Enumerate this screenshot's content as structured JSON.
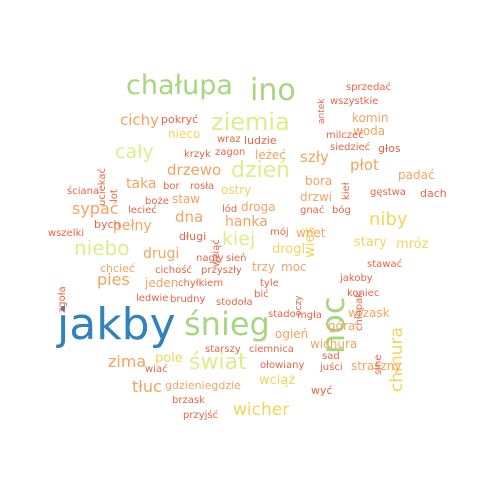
{
  "palette": {
    "dark_blue": "#3182bd",
    "green": "#a6d77f",
    "light_green": "#d9ef8b",
    "yellow": "#f6d35a",
    "orange": "#f4a35f",
    "red_orange": "#e86445"
  },
  "words": [
    {
      "text": "jakby",
      "color": "dark_blue",
      "weight": 1.0
    },
    {
      "text": "śnieg",
      "color": "green",
      "weight": 0.72
    },
    {
      "text": "noc",
      "color": "green",
      "weight": 0.72
    },
    {
      "text": "chałupa",
      "color": "green",
      "weight": 0.6
    },
    {
      "text": "ino",
      "color": "green",
      "weight": 0.6
    },
    {
      "text": "ziemia",
      "color": "light_green",
      "weight": 0.55
    },
    {
      "text": "świat",
      "color": "light_green",
      "weight": 0.5
    },
    {
      "text": "dzień",
      "color": "light_green",
      "weight": 0.48
    },
    {
      "text": "niebo",
      "color": "light_green",
      "weight": 0.45
    },
    {
      "text": "cały",
      "color": "light_green",
      "weight": 0.42
    },
    {
      "text": "kiej",
      "color": "light_green",
      "weight": 0.38
    },
    {
      "text": "niby",
      "color": "yellow",
      "weight": 0.38
    },
    {
      "text": "chmura",
      "color": "yellow",
      "weight": 0.35
    },
    {
      "text": "wicher",
      "color": "yellow",
      "weight": 0.35
    },
    {
      "text": "zima",
      "color": "orange",
      "weight": 0.33
    },
    {
      "text": "pies",
      "color": "orange",
      "weight": 0.33
    },
    {
      "text": "sypać",
      "color": "orange",
      "weight": 0.32
    },
    {
      "text": "tłuc",
      "color": "orange",
      "weight": 0.3
    },
    {
      "text": "cichy",
      "color": "orange",
      "weight": 0.28
    },
    {
      "text": "szły",
      "color": "orange",
      "weight": 0.3
    },
    {
      "text": "płot",
      "color": "orange",
      "weight": 0.3
    },
    {
      "text": "drzewo",
      "color": "orange",
      "weight": 0.28
    },
    {
      "text": "dna",
      "color": "orange",
      "weight": 0.3
    },
    {
      "text": "taka",
      "color": "orange",
      "weight": 0.28
    },
    {
      "text": "pełny",
      "color": "orange",
      "weight": 0.26
    },
    {
      "text": "drugi",
      "color": "orange",
      "weight": 0.26
    },
    {
      "text": "hanka",
      "color": "orange",
      "weight": 0.26
    },
    {
      "text": "wieś",
      "color": "yellow",
      "weight": 0.25
    },
    {
      "text": "wciąż",
      "color": "yellow",
      "weight": 0.25
    },
    {
      "text": "mróz",
      "color": "yellow",
      "weight": 0.24
    },
    {
      "text": "stary",
      "color": "yellow",
      "weight": 0.24
    },
    {
      "text": "drogi",
      "color": "yellow",
      "weight": 0.24
    },
    {
      "text": "pole",
      "color": "yellow",
      "weight": 0.24
    },
    {
      "text": "woda",
      "color": "orange",
      "weight": 0.22
    },
    {
      "text": "komin",
      "color": "orange",
      "weight": 0.22
    },
    {
      "text": "padać",
      "color": "orange",
      "weight": 0.22
    },
    {
      "text": "nieco",
      "color": "yellow",
      "weight": 0.22
    },
    {
      "text": "leżeć",
      "color": "orange",
      "weight": 0.22
    },
    {
      "text": "bora",
      "color": "orange",
      "weight": 0.2
    },
    {
      "text": "drzwi",
      "color": "orange",
      "weight": 0.2
    },
    {
      "text": "ostry",
      "color": "yellow",
      "weight": 0.2
    },
    {
      "text": "droga",
      "color": "orange",
      "weight": 0.2
    },
    {
      "text": "staw",
      "color": "orange",
      "weight": 0.2
    },
    {
      "text": "wnet",
      "color": "orange",
      "weight": 0.2
    },
    {
      "text": "trzy",
      "color": "orange",
      "weight": 0.2
    },
    {
      "text": "moc",
      "color": "orange",
      "weight": 0.2
    },
    {
      "text": "jeden",
      "color": "orange",
      "weight": 0.2
    },
    {
      "text": "góra",
      "color": "orange",
      "weight": 0.2
    },
    {
      "text": "wrzask",
      "color": "orange",
      "weight": 0.2
    },
    {
      "text": "ogień",
      "color": "orange",
      "weight": 0.2
    },
    {
      "text": "wichura",
      "color": "orange",
      "weight": 0.2
    },
    {
      "text": "straszny",
      "color": "orange",
      "weight": 0.2
    },
    {
      "text": "chcieć",
      "color": "orange",
      "weight": 0.18
    },
    {
      "text": "gdzieniegdzie",
      "color": "orange",
      "weight": 0.18
    },
    {
      "text": "sprzedać",
      "color": "red_orange",
      "weight": 0.12
    },
    {
      "text": "wszystkie",
      "color": "red_orange",
      "weight": 0.12
    },
    {
      "text": "antek",
      "color": "red_orange",
      "weight": 0.12
    },
    {
      "text": "pokryć",
      "color": "red_orange",
      "weight": 0.14
    },
    {
      "text": "milczeć",
      "color": "red_orange",
      "weight": 0.12
    },
    {
      "text": "wraz",
      "color": "red_orange",
      "weight": 0.14
    },
    {
      "text": "ludzie",
      "color": "red_orange",
      "weight": 0.14
    },
    {
      "text": "uciekać",
      "color": "red_orange",
      "weight": 0.12
    },
    {
      "text": "kieł",
      "color": "red_orange",
      "weight": 0.12
    },
    {
      "text": "siedzieć",
      "color": "red_orange",
      "weight": 0.12
    },
    {
      "text": "głos",
      "color": "red_orange",
      "weight": 0.14
    },
    {
      "text": "krzyk",
      "color": "red_orange",
      "weight": 0.12
    },
    {
      "text": "zagon",
      "color": "red_orange",
      "weight": 0.12
    },
    {
      "text": "lot",
      "color": "red_orange",
      "weight": 0.12
    },
    {
      "text": "ściana",
      "color": "red_orange",
      "weight": 0.12
    },
    {
      "text": "bor",
      "color": "red_orange",
      "weight": 0.12
    },
    {
      "text": "rosła",
      "color": "red_orange",
      "weight": 0.12
    },
    {
      "text": "gęstwa",
      "color": "red_orange",
      "weight": 0.12
    },
    {
      "text": "dach",
      "color": "red_orange",
      "weight": 0.14
    },
    {
      "text": "bych",
      "color": "red_orange",
      "weight": 0.14
    },
    {
      "text": "boże",
      "color": "red_orange",
      "weight": 0.12
    },
    {
      "text": "lecieć",
      "color": "red_orange",
      "weight": 0.12
    },
    {
      "text": "lód",
      "color": "red_orange",
      "weight": 0.12
    },
    {
      "text": "gnać",
      "color": "red_orange",
      "weight": 0.12
    },
    {
      "text": "bóg",
      "color": "red_orange",
      "weight": 0.12
    },
    {
      "text": "wszelki",
      "color": "red_orange",
      "weight": 0.12
    },
    {
      "text": "wziąć",
      "color": "red_orange",
      "weight": 0.12
    },
    {
      "text": "długi",
      "color": "red_orange",
      "weight": 0.14
    },
    {
      "text": "mój",
      "color": "red_orange",
      "weight": 0.12
    },
    {
      "text": "chłopak",
      "color": "red_orange",
      "weight": 0.12
    },
    {
      "text": "nagły",
      "color": "red_orange",
      "weight": 0.12
    },
    {
      "text": "sień",
      "color": "red_orange",
      "weight": 0.12
    },
    {
      "text": "stawać",
      "color": "red_orange",
      "weight": 0.12
    },
    {
      "text": "zgoła",
      "color": "red_orange",
      "weight": 0.12
    },
    {
      "text": "cichość",
      "color": "red_orange",
      "weight": 0.12
    },
    {
      "text": "przyszły",
      "color": "red_orange",
      "weight": 0.12
    },
    {
      "text": "jakoby",
      "color": "red_orange",
      "weight": 0.12
    },
    {
      "text": "chyłkiem",
      "color": "red_orange",
      "weight": 0.12
    },
    {
      "text": "tyle",
      "color": "red_orange",
      "weight": 0.12
    },
    {
      "text": "koniec",
      "color": "red_orange",
      "weight": 0.12
    },
    {
      "text": "oczy",
      "color": "red_orange",
      "weight": 0.12
    },
    {
      "text": "ledwie",
      "color": "red_orange",
      "weight": 0.12
    },
    {
      "text": "brudny",
      "color": "red_orange",
      "weight": 0.12
    },
    {
      "text": "stodoła",
      "color": "red_orange",
      "weight": 0.12
    },
    {
      "text": "bić",
      "color": "red_orange",
      "weight": 0.12
    },
    {
      "text": "stado",
      "color": "red_orange",
      "weight": 0.12
    },
    {
      "text": "mgła",
      "color": "red_orange",
      "weight": 0.12
    },
    {
      "text": "sine",
      "color": "red_orange",
      "weight": 0.12
    },
    {
      "text": "starszy",
      "color": "red_orange",
      "weight": 0.12
    },
    {
      "text": "ciemnica",
      "color": "red_orange",
      "weight": 0.12
    },
    {
      "text": "sad",
      "color": "red_orange",
      "weight": 0.12
    },
    {
      "text": "wiać",
      "color": "red_orange",
      "weight": 0.12
    },
    {
      "text": "ołowiany",
      "color": "red_orange",
      "weight": 0.12
    },
    {
      "text": "juści",
      "color": "red_orange",
      "weight": 0.12
    },
    {
      "text": "wyć",
      "color": "red_orange",
      "weight": 0.14
    },
    {
      "text": "brzask",
      "color": "red_orange",
      "weight": 0.12
    },
    {
      "text": "przyjść",
      "color": "red_orange",
      "weight": 0.12
    }
  ]
}
